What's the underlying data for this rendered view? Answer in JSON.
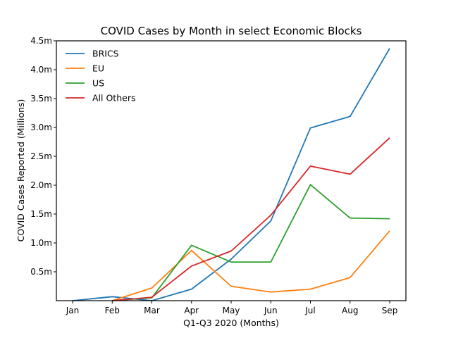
{
  "chart_data": {
    "type": "line",
    "title": "COVID Cases by Month in select Economic Blocks",
    "xlabel": "Q1-Q3 2020 (Months)",
    "ylabel": "COVID Cases Reported (Millions)",
    "categories": [
      "Jan",
      "Feb",
      "Mar",
      "Apr",
      "May",
      "Jun",
      "Jul",
      "Aug",
      "Sep"
    ],
    "ylim": [
      0,
      4.5
    ],
    "yticks": [
      {
        "value": 0.5,
        "label": "0.5m"
      },
      {
        "value": 1.0,
        "label": "1.0m"
      },
      {
        "value": 1.5,
        "label": "1.5m"
      },
      {
        "value": 2.0,
        "label": "2.0m"
      },
      {
        "value": 2.5,
        "label": "2.5m"
      },
      {
        "value": 3.0,
        "label": "3.0m"
      },
      {
        "value": 3.5,
        "label": "3.5m"
      },
      {
        "value": 4.0,
        "label": "4.0m"
      },
      {
        "value": 4.5,
        "label": "4.5m"
      }
    ],
    "grid": false,
    "legend_position": "top-left",
    "series": [
      {
        "name": "BRICS",
        "color": "#1f77b4",
        "values": [
          0.0,
          0.07,
          0.0,
          0.2,
          0.72,
          1.38,
          2.99,
          3.19,
          4.37
        ]
      },
      {
        "name": "EU",
        "color": "#ff7f0e",
        "values": [
          null,
          0.0,
          0.22,
          0.87,
          0.25,
          0.15,
          0.2,
          0.4,
          1.21
        ]
      },
      {
        "name": "US",
        "color": "#2ca02c",
        "values": [
          null,
          0.0,
          0.05,
          0.96,
          0.67,
          0.67,
          2.01,
          1.43,
          1.42
        ]
      },
      {
        "name": "All Others",
        "color": "#d62728",
        "values": [
          null,
          0.0,
          0.06,
          0.6,
          0.86,
          1.48,
          2.33,
          2.19,
          2.82
        ]
      }
    ]
  }
}
